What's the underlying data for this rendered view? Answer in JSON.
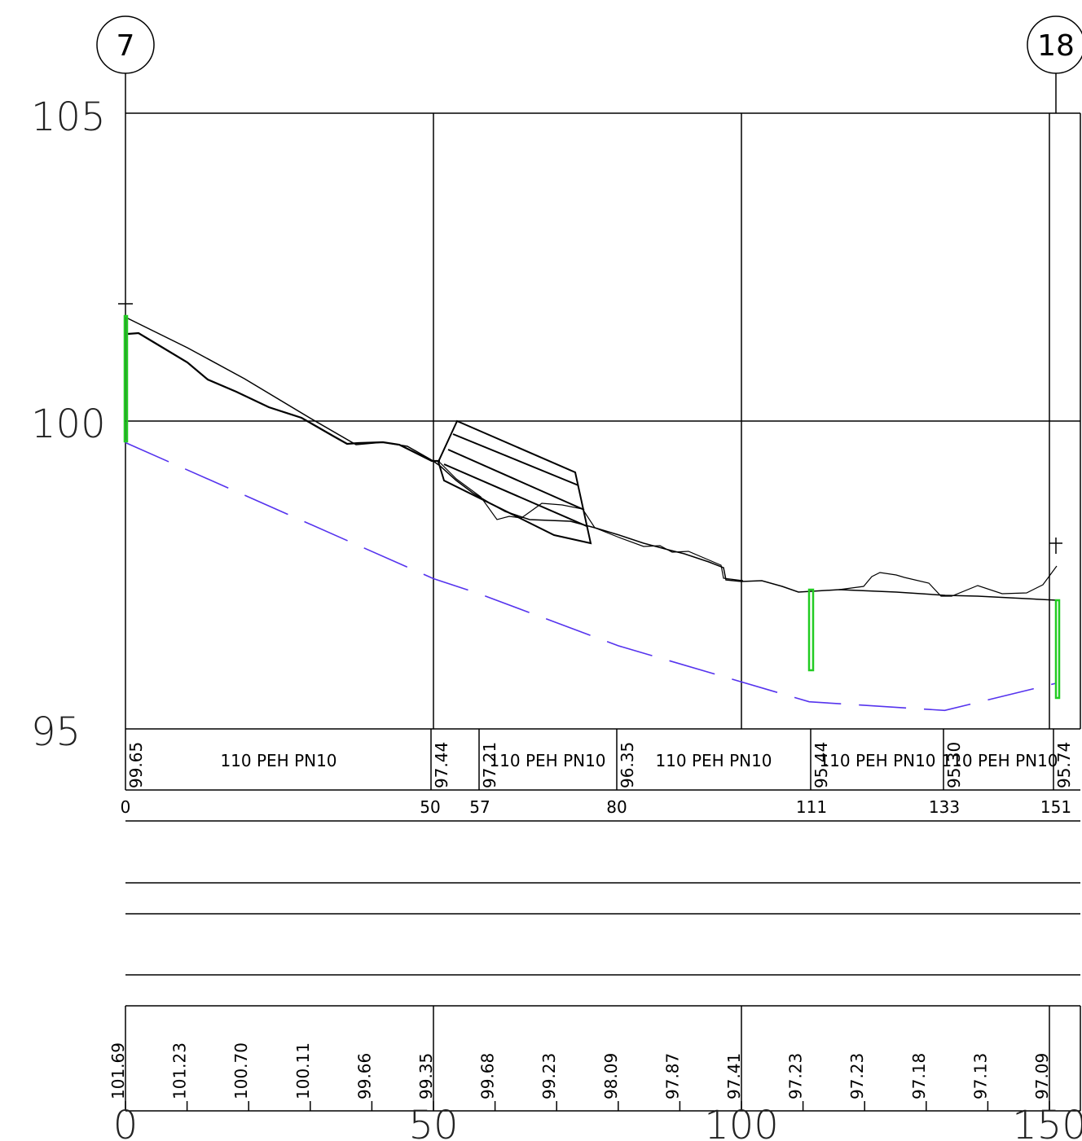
{
  "nodes": {
    "start": "7",
    "end": "18"
  },
  "elevation_axis": {
    "labels": [
      "105",
      "100",
      "95"
    ],
    "values": [
      105,
      100,
      95
    ]
  },
  "pipe_table": {
    "segments": [
      {
        "start_elev": "99.65",
        "label": "110 PEH PN10"
      },
      {
        "start_elev": "97.44",
        "label": ""
      },
      {
        "start_elev": "97.21",
        "label": "110 PEH PN10"
      },
      {
        "start_elev": "96.35",
        "label": "110 PEH PN10"
      },
      {
        "start_elev": "95.44",
        "label": "110 PEH PN10"
      },
      {
        "start_elev": "95.30",
        "label": "110 PEH PN10"
      }
    ],
    "end_elev": "95.74",
    "stations": [
      "0",
      "50",
      "57",
      "80",
      "111",
      "133",
      "151"
    ]
  },
  "terrain_table": {
    "elevations": [
      "101.69",
      "101.23",
      "100.70",
      "100.11",
      "99.66",
      "99.35",
      "99.68",
      "99.23",
      "98.09",
      "97.87",
      "97.41",
      "97.23",
      "97.23",
      "97.18",
      "97.13",
      "97.09"
    ]
  },
  "distance_axis": {
    "labels": [
      "0",
      "50",
      "100",
      "150"
    ]
  },
  "colors": {
    "pipe_line": "#5533ee",
    "marker": "#22cc22",
    "line": "#000000"
  },
  "chart_data": {
    "type": "line",
    "x_unit": "m",
    "y_unit": "m",
    "xlim": [
      0,
      155
    ],
    "ylim": [
      95,
      105
    ],
    "grid": true,
    "series": [
      {
        "values_x": [
          0,
          50,
          57,
          80,
          111,
          133,
          151
        ],
        "values_y": [
          99.65,
          97.44,
          97.21,
          96.35,
          95.44,
          95.3,
          95.74
        ]
      },
      {
        "values_x": [
          0,
          10,
          20,
          30,
          40,
          50,
          60,
          70,
          80,
          90,
          100,
          110,
          120,
          130,
          140,
          150
        ],
        "values_y": [
          101.69,
          101.23,
          100.7,
          100.11,
          99.66,
          99.35,
          99.68,
          99.23,
          98.09,
          97.87,
          97.41,
          97.23,
          97.23,
          97.18,
          97.13,
          97.09
        ]
      }
    ]
  }
}
